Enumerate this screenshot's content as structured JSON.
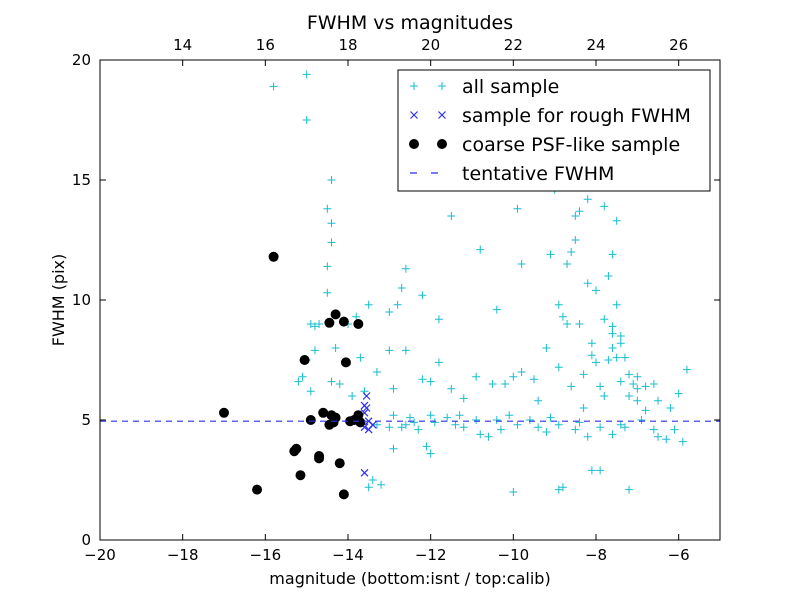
{
  "chart_data": {
    "type": "scatter",
    "title": "FWHM vs magnitudes",
    "xlabel": "magnitude (bottom:isnt / top:calib)",
    "ylabel": "FWHM (pix)",
    "xlim": [
      -20,
      -5
    ],
    "ylim": [
      0,
      20
    ],
    "top_axis_lim": [
      12,
      27
    ],
    "x_ticks": [
      -20,
      -18,
      -16,
      -14,
      -12,
      -10,
      -8,
      -6
    ],
    "x_tick_labels": [
      "−20",
      "−18",
      "−16",
      "−14",
      "−12",
      "−10",
      "−8",
      "−6"
    ],
    "y_ticks": [
      0,
      5,
      10,
      15,
      20
    ],
    "y_tick_labels": [
      "0",
      "5",
      "10",
      "15",
      "20"
    ],
    "top_ticks": [
      14,
      16,
      18,
      20,
      22,
      24,
      26
    ],
    "top_tick_labels": [
      "14",
      "16",
      "18",
      "20",
      "22",
      "24",
      "26"
    ],
    "legend_position": "top-right",
    "series": [
      {
        "name": "all sample",
        "marker": "plus",
        "color": "#17becf",
        "points": [
          [
            -15.8,
            18.9
          ],
          [
            -15.0,
            19.4
          ],
          [
            -15.0,
            17.5
          ],
          [
            -14.4,
            15.0
          ],
          [
            -14.5,
            13.8
          ],
          [
            -14.4,
            13.2
          ],
          [
            -14.4,
            12.4
          ],
          [
            -14.5,
            11.4
          ],
          [
            -14.5,
            10.3
          ],
          [
            -14.9,
            9.0
          ],
          [
            -14.8,
            8.9
          ],
          [
            -14.7,
            9.0
          ],
          [
            -14.8,
            7.9
          ],
          [
            -15.0,
            7.5
          ],
          [
            -15.1,
            6.8
          ],
          [
            -15.2,
            6.6
          ],
          [
            -14.9,
            6.2
          ],
          [
            -14.3,
            8.0
          ],
          [
            -14.0,
            9.0
          ],
          [
            -13.8,
            9.3
          ],
          [
            -13.5,
            9.8
          ],
          [
            -13.0,
            9.5
          ],
          [
            -12.8,
            9.8
          ],
          [
            -12.6,
            11.3
          ],
          [
            -12.7,
            10.5
          ],
          [
            -12.2,
            10.2
          ],
          [
            -11.8,
            9.2
          ],
          [
            -11.5,
            13.5
          ],
          [
            -10.8,
            12.1
          ],
          [
            -10.4,
            9.6
          ],
          [
            -9.9,
            13.8
          ],
          [
            -9.8,
            11.5
          ],
          [
            -9.0,
            14.6
          ],
          [
            -9.1,
            11.9
          ],
          [
            -8.5,
            13.5
          ],
          [
            -8.4,
            13.7
          ],
          [
            -8.2,
            14.2
          ],
          [
            -7.8,
            13.9
          ],
          [
            -7.5,
            13.3
          ],
          [
            -8.7,
            11.5
          ],
          [
            -8.6,
            12.0
          ],
          [
            -8.5,
            12.5
          ],
          [
            -7.7,
            11.0
          ],
          [
            -7.6,
            11.9
          ],
          [
            -8.9,
            9.8
          ],
          [
            -8.8,
            9.3
          ],
          [
            -8.4,
            9.0
          ],
          [
            -8.2,
            10.7
          ],
          [
            -8.0,
            10.4
          ],
          [
            -7.8,
            9.2
          ],
          [
            -7.6,
            8.9
          ],
          [
            -7.4,
            8.5
          ],
          [
            -8.1,
            8.2
          ],
          [
            -8.0,
            7.4
          ],
          [
            -7.6,
            8.0
          ],
          [
            -7.4,
            8.2
          ],
          [
            -7.5,
            7.6
          ],
          [
            -7.3,
            7.6
          ],
          [
            -7.7,
            7.5
          ],
          [
            -7.2,
            6.9
          ],
          [
            -7.1,
            6.5
          ],
          [
            -7.0,
            6.3
          ],
          [
            -7.2,
            6.0
          ],
          [
            -7.0,
            5.8
          ],
          [
            -6.8,
            6.4
          ],
          [
            -6.6,
            6.5
          ],
          [
            -6.5,
            5.8
          ],
          [
            -6.2,
            5.5
          ],
          [
            -6.0,
            6.1
          ],
          [
            -5.8,
            7.1
          ],
          [
            -6.1,
            4.6
          ],
          [
            -6.3,
            4.2
          ],
          [
            -5.9,
            4.1
          ],
          [
            -6.5,
            4.3
          ],
          [
            -7.2,
            2.1
          ],
          [
            -7.9,
            2.9
          ],
          [
            -8.1,
            2.9
          ],
          [
            -8.8,
            2.2
          ],
          [
            -8.9,
            2.1
          ],
          [
            -10.0,
            2.0
          ],
          [
            -13.5,
            2.2
          ],
          [
            -13.4,
            2.5
          ],
          [
            -13.2,
            2.3
          ],
          [
            -12.9,
            3.8
          ],
          [
            -12.0,
            3.6
          ],
          [
            -12.1,
            3.9
          ],
          [
            -12.6,
            4.8
          ],
          [
            -12.3,
            4.6
          ],
          [
            -12.0,
            6.6
          ],
          [
            -11.8,
            7.4
          ],
          [
            -11.5,
            6.3
          ],
          [
            -11.2,
            5.9
          ],
          [
            -10.9,
            6.8
          ],
          [
            -10.5,
            6.5
          ],
          [
            -10.2,
            6.5
          ],
          [
            -10.0,
            6.8
          ],
          [
            -9.8,
            7.0
          ],
          [
            -9.5,
            6.7
          ],
          [
            -9.2,
            8.0
          ],
          [
            -8.9,
            7.2
          ],
          [
            -8.6,
            6.4
          ],
          [
            -8.3,
            6.9
          ],
          [
            -8.1,
            7.7
          ],
          [
            -7.9,
            6.4
          ],
          [
            -7.4,
            6.6
          ],
          [
            -7.8,
            6.0
          ],
          [
            -7.0,
            6.8
          ],
          [
            -8.3,
            5.5
          ],
          [
            -8.5,
            4.6
          ],
          [
            -9.1,
            5.1
          ],
          [
            -9.6,
            5.0
          ],
          [
            -10.1,
            5.2
          ],
          [
            -10.3,
            4.6
          ],
          [
            -10.8,
            4.4
          ],
          [
            -11.2,
            4.7
          ],
          [
            -11.6,
            5.1
          ],
          [
            -12.0,
            5.2
          ],
          [
            -12.4,
            4.9
          ],
          [
            -12.9,
            5.2
          ],
          [
            -13.3,
            4.8
          ],
          [
            -13.0,
            4.7
          ],
          [
            -12.7,
            4.7
          ],
          [
            -11.9,
            4.9
          ],
          [
            -11.4,
            4.8
          ],
          [
            -10.9,
            5.0
          ],
          [
            -10.4,
            5.0
          ],
          [
            -9.9,
            4.8
          ],
          [
            -9.4,
            4.7
          ],
          [
            -8.9,
            4.8
          ],
          [
            -8.4,
            4.9
          ],
          [
            -7.9,
            4.7
          ],
          [
            -7.4,
            4.8
          ],
          [
            -6.9,
            5.0
          ],
          [
            -6.6,
            4.6
          ],
          [
            -7.6,
            4.4
          ],
          [
            -8.2,
            4.3
          ],
          [
            -9.2,
            4.5
          ],
          [
            -10.6,
            4.3
          ],
          [
            -11.3,
            5.2
          ],
          [
            -12.5,
            5.1
          ],
          [
            -13.6,
            6.2
          ],
          [
            -13.3,
            7.0
          ],
          [
            -13.0,
            7.9
          ],
          [
            -12.6,
            7.9
          ],
          [
            -12.2,
            6.7
          ],
          [
            -12.9,
            6.3
          ],
          [
            -13.7,
            7.6
          ],
          [
            -14.4,
            6.6
          ],
          [
            -14.2,
            6.5
          ],
          [
            -13.9,
            6.0
          ],
          [
            -7.5,
            9.8
          ],
          [
            -7.6,
            8.6
          ],
          [
            -8.7,
            9.0
          ],
          [
            -9.4,
            5.8
          ],
          [
            -6.8,
            5.4
          ],
          [
            -7.3,
            4.7
          ]
        ]
      },
      {
        "name": "sample for rough FWHM",
        "marker": "x",
        "color": "#2f2ff0",
        "points": [
          [
            -13.55,
            6.0
          ],
          [
            -13.6,
            5.6
          ],
          [
            -13.55,
            5.5
          ],
          [
            -13.6,
            5.3
          ],
          [
            -13.5,
            4.95
          ],
          [
            -13.4,
            4.8
          ],
          [
            -13.6,
            4.7
          ],
          [
            -13.5,
            4.6
          ],
          [
            -13.6,
            2.8
          ]
        ]
      },
      {
        "name": "coarse PSF-like sample",
        "marker": "circle",
        "color": "#000000",
        "points": [
          [
            -17.0,
            5.3
          ],
          [
            -16.2,
            2.1
          ],
          [
            -15.8,
            11.8
          ],
          [
            -15.3,
            3.7
          ],
          [
            -15.25,
            3.8
          ],
          [
            -15.15,
            2.7
          ],
          [
            -15.05,
            7.5
          ],
          [
            -14.9,
            5.0
          ],
          [
            -14.7,
            3.5
          ],
          [
            -14.7,
            3.4
          ],
          [
            -14.6,
            5.3
          ],
          [
            -14.45,
            9.05
          ],
          [
            -14.4,
            5.2
          ],
          [
            -14.35,
            4.9
          ],
          [
            -14.3,
            5.1
          ],
          [
            -14.3,
            9.4
          ],
          [
            -14.2,
            3.2
          ],
          [
            -14.1,
            9.1
          ],
          [
            -14.1,
            1.9
          ],
          [
            -14.05,
            7.4
          ],
          [
            -13.95,
            4.95
          ],
          [
            -13.85,
            5.0
          ],
          [
            -13.75,
            9.0
          ],
          [
            -13.75,
            5.2
          ],
          [
            -13.7,
            4.9
          ],
          [
            -14.45,
            4.8
          ]
        ]
      },
      {
        "name": "tentative FWHM",
        "marker": "dashed-line",
        "color": "#2f2ff0",
        "y": 4.95
      }
    ]
  }
}
